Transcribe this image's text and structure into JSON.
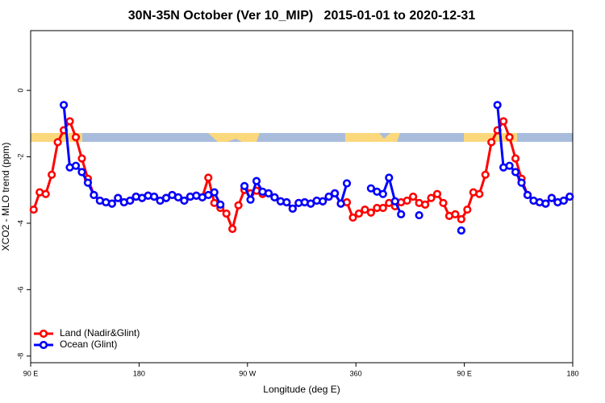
{
  "chart_data": {
    "type": "line",
    "title": "30N-35N October (Ver 10_MIP)   2015-01-01 to 2020-12-31",
    "x_label": "Longitude (deg E)",
    "y_label": "XCO2 - MLO trend (ppm)",
    "x": [
      92.5,
      97.5,
      102.5,
      107.5,
      112.5,
      117.5,
      122.5,
      127.5,
      132.5,
      137.5,
      142.5,
      147.5,
      152.5,
      157.5,
      162.5,
      167.5,
      172.5,
      177.5,
      182.5,
      187.5,
      192.5,
      197.5,
      202.5,
      207.5,
      212.5,
      217.5,
      222.5,
      227.5,
      232.5,
      237.5,
      242.5,
      247.5,
      252.5,
      257.5,
      262.5,
      267.5,
      272.5,
      277.5,
      282.5,
      287.5,
      292.5,
      297.5,
      302.5,
      307.5,
      312.5,
      317.5,
      322.5,
      327.5,
      332.5,
      337.5,
      342.5,
      347.5,
      352.5,
      357.5,
      362.5,
      367.5,
      372.5,
      377.5,
      382.5,
      387.5,
      392.5,
      397.5,
      402.5,
      407.5,
      412.5,
      417.5,
      422.5,
      427.5,
      432.5,
      437.5,
      442.5,
      447.5,
      452.5,
      457.5,
      462.5,
      467.5,
      472.5,
      477.5,
      482.5,
      487.5,
      492.5,
      497.5,
      502.5,
      507.5,
      512.5,
      517.5,
      522.5,
      527.5,
      532.5,
      537.5
    ],
    "series": [
      {
        "name": "Land (Nadir&Glint)",
        "color": "#ff0000",
        "values": [
          -3.59,
          -3.07,
          -3.12,
          -2.54,
          -1.56,
          -1.2,
          -0.93,
          -1.41,
          -2.05,
          -2.66,
          -3.15,
          -3.32,
          -3.37,
          -3.41,
          -3.24,
          -3.37,
          -3.32,
          -3.2,
          -3.24,
          -3.17,
          -3.2,
          -3.32,
          -3.24,
          -3.15,
          -3.22,
          -3.32,
          -3.2,
          -3.17,
          -3.22,
          -2.63,
          -3.39,
          -3.54,
          -3.71,
          -4.17,
          -3.46,
          -3.0,
          -3.1,
          -3.02,
          -3.12,
          -3.1,
          -3.22,
          -3.34,
          -3.37,
          -3.56,
          -3.39,
          -3.37,
          -3.41,
          -3.32,
          -3.34,
          -3.2,
          -3.1,
          -3.41,
          -3.37,
          -3.83,
          -3.71,
          -3.59,
          -3.68,
          -3.54,
          -3.54,
          -3.39,
          -3.49,
          -3.37,
          -3.32,
          -3.2,
          -3.39,
          -3.44,
          -3.24,
          -3.12,
          -3.39,
          -3.78,
          -3.73,
          -3.88,
          -3.59,
          -3.07,
          -3.12,
          -2.54,
          -1.56,
          -1.2,
          -0.93,
          -1.41,
          -2.05,
          -2.66,
          -3.15,
          -3.32,
          -3.37,
          -3.41,
          -3.24,
          -3.37,
          -3.32,
          -3.2
        ]
      },
      {
        "name": "Ocean (Glint)",
        "color": "#0000ff",
        "values": [
          null,
          null,
          null,
          null,
          null,
          -0.44,
          -2.32,
          -2.27,
          -2.46,
          -2.78,
          -3.15,
          -3.32,
          -3.37,
          -3.41,
          -3.24,
          -3.37,
          -3.32,
          -3.2,
          -3.24,
          -3.17,
          -3.2,
          -3.32,
          -3.24,
          -3.15,
          -3.22,
          -3.32,
          -3.2,
          -3.17,
          -3.22,
          -3.15,
          -3.07,
          -3.44,
          null,
          null,
          null,
          -2.88,
          -3.29,
          -2.73,
          -3.05,
          -3.1,
          -3.22,
          -3.34,
          -3.37,
          -3.56,
          -3.39,
          -3.37,
          -3.41,
          -3.32,
          -3.34,
          -3.2,
          -3.1,
          -3.41,
          -2.8,
          null,
          null,
          null,
          -2.95,
          -3.05,
          -3.12,
          -2.63,
          -3.34,
          -3.73,
          null,
          null,
          -3.76,
          null,
          null,
          null,
          null,
          null,
          null,
          -4.22,
          null,
          null,
          null,
          null,
          null,
          -0.44,
          -2.32,
          -2.27,
          -2.46,
          -2.78,
          -3.15,
          -3.32,
          -3.37,
          -3.41,
          -3.24,
          -3.37,
          -3.32,
          -3.2
        ]
      }
    ],
    "xlim": [
      90,
      540
    ],
    "xticks": [
      {
        "value": 90,
        "label": "90 E"
      },
      180,
      {
        "value": 270,
        "label": "90 W"
      },
      360,
      {
        "value": 450,
        "label": "90 E"
      },
      {
        "value": 540,
        "label": "180"
      }
    ],
    "ylim": [
      -8.2,
      1.8
    ],
    "yticks": [
      0,
      -2,
      -4,
      -6,
      -8
    ],
    "grid": false,
    "legend": "bottom left"
  }
}
